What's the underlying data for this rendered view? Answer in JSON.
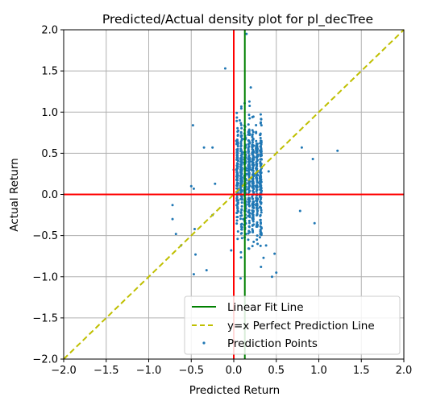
{
  "chart_data": {
    "type": "scatter",
    "title": "Predicted/Actual density plot for pl_decTree",
    "xlabel": "Predicted Return",
    "ylabel": "Actual Return",
    "xlim": [
      -2.0,
      2.0
    ],
    "ylim": [
      -2.0,
      2.0
    ],
    "xticks": [
      -2.0,
      -1.5,
      -1.0,
      -0.5,
      0.0,
      0.5,
      1.0,
      1.5,
      2.0
    ],
    "yticks": [
      -2.0,
      -1.5,
      -1.0,
      -0.5,
      0.0,
      0.5,
      1.0,
      1.5,
      2.0
    ],
    "xtick_labels": [
      "−2.0",
      "−1.5",
      "−1.0",
      "−0.5",
      "0.0",
      "0.5",
      "1.0",
      "1.5",
      "2.0"
    ],
    "ytick_labels": [
      "−2.0",
      "−1.5",
      "−1.0",
      "−0.5",
      "0.0",
      "0.5",
      "1.0",
      "1.5",
      "2.0"
    ],
    "grid": true,
    "legend_position": "lower-right",
    "legend": [
      {
        "label": "Linear Fit Line",
        "style": "solid",
        "color": "#008000"
      },
      {
        "label": "y=x Perfect Prediction Line",
        "style": "dashed",
        "color": "#bfbf00"
      },
      {
        "label": "Prediction Points",
        "style": "marker",
        "color": "#1f77b4"
      }
    ],
    "reference_lines": {
      "zero_color": "#ff0000",
      "fit_line_x": 0.13,
      "fit_color": "#008000",
      "perfect_color": "#bfbf00"
    },
    "series": [
      {
        "name": "Prediction Points",
        "color": "#1f77b4",
        "x": [
          -0.5,
          -0.47,
          -0.35,
          -0.25,
          -0.22,
          -0.1,
          -0.03,
          0.0,
          0.15,
          0.41,
          -0.72,
          -0.72,
          -0.68,
          -0.62,
          -0.45,
          -0.47,
          -0.32,
          -0.48,
          -0.25,
          -0.46,
          0.78,
          0.8,
          0.93,
          0.95,
          1.22,
          0.08,
          0.22,
          0.48,
          0.35,
          0.5,
          0.38,
          0.32,
          0.45,
          0.03,
          0.05,
          0.07,
          0.09,
          0.11,
          0.17,
          0.2,
          0.26,
          0.28,
          0.31,
          0.24
        ],
        "y": [
          0.1,
          0.07,
          0.57,
          0.57,
          0.13,
          1.53,
          -0.68,
          0.3,
          1.95,
          0.28,
          -0.13,
          -0.3,
          -0.48,
          -0.62,
          -0.73,
          -0.97,
          -0.92,
          0.84,
          -0.25,
          -0.42,
          -0.2,
          0.57,
          0.43,
          -0.35,
          0.53,
          -1.02,
          0.78,
          -0.72,
          -0.77,
          -0.95,
          -0.62,
          -0.88,
          -1.0,
          0.65,
          -0.45,
          0.9,
          0.2,
          -0.3,
          -0.55,
          1.3,
          0.1,
          -0.6,
          -0.15,
          0.45
        ]
      }
    ],
    "dense_cluster": {
      "x_min": 0.02,
      "x_max": 0.34,
      "y_min": -0.85,
      "y_max": 1.25
    }
  }
}
